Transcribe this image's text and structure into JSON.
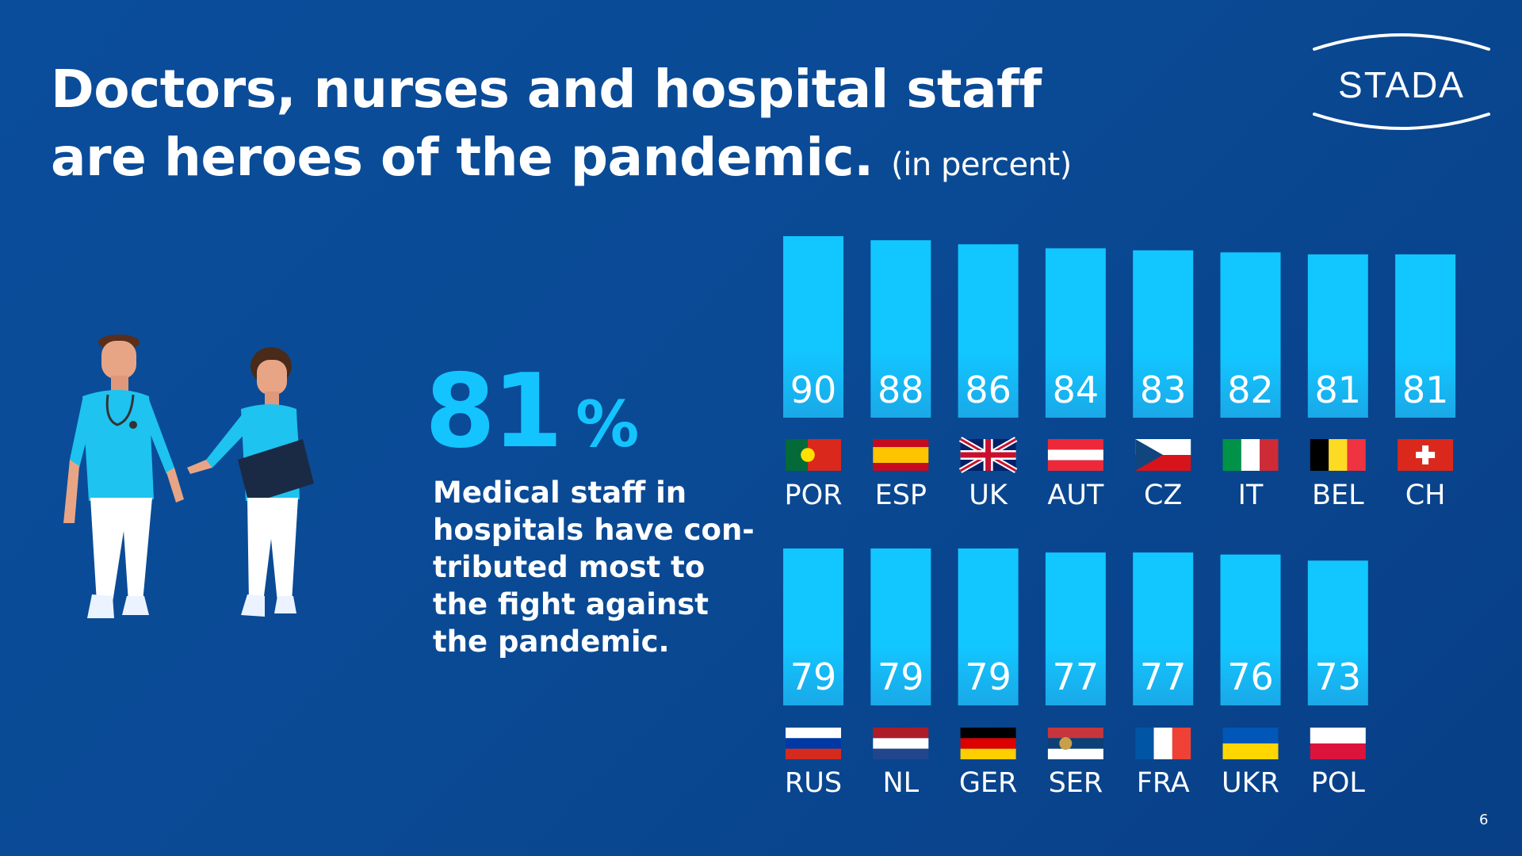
{
  "title": {
    "main": "Doctors, nurses and hospital staff are heroes of the pandemic.",
    "unit": "(in percent)"
  },
  "logo": {
    "text": "STADA"
  },
  "highlight": {
    "value": "81",
    "unit": "%",
    "text": "Medical staff in hospitals have con-tributed most to the fight against the pandemic."
  },
  "page_number": "6",
  "colors": {
    "background": "#0a4a95",
    "bar": "#14c4ff",
    "text": "#ffffff"
  },
  "chart_data": [
    {
      "type": "bar",
      "categories": [
        "POR",
        "ESP",
        "UK",
        "AUT",
        "CZ",
        "IT",
        "BEL",
        "CH"
      ],
      "values": [
        90,
        88,
        86,
        84,
        83,
        82,
        81,
        81
      ],
      "flags": [
        "portugal-flag",
        "spain-flag",
        "uk-flag",
        "austria-flag",
        "czech-flag",
        "italy-flag",
        "belgium-flag",
        "switzerland-flag"
      ]
    },
    {
      "type": "bar",
      "categories": [
        "RUS",
        "NL",
        "GER",
        "SER",
        "FRA",
        "UKR",
        "POL"
      ],
      "values": [
        79,
        79,
        79,
        77,
        77,
        76,
        73
      ],
      "flags": [
        "russia-flag",
        "netherlands-flag",
        "germany-flag",
        "serbia-flag",
        "france-flag",
        "ukraine-flag",
        "poland-flag"
      ]
    }
  ]
}
